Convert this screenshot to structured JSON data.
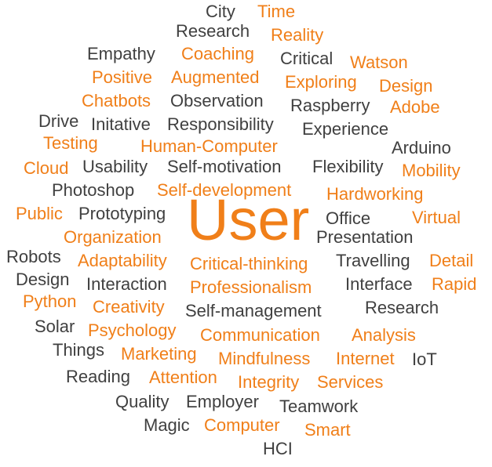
{
  "colors": {
    "orange": "#f07f19",
    "dark": "#404040"
  },
  "words": [
    {
      "text": "City",
      "color": "dark"
    },
    {
      "text": "Time",
      "color": "orange"
    },
    {
      "text": "Research",
      "color": "dark"
    },
    {
      "text": "Reality",
      "color": "orange"
    },
    {
      "text": "Empathy",
      "color": "dark"
    },
    {
      "text": "Coaching",
      "color": "orange"
    },
    {
      "text": "Critical",
      "color": "dark"
    },
    {
      "text": "Watson",
      "color": "orange"
    },
    {
      "text": "Positive",
      "color": "orange"
    },
    {
      "text": "Augmented",
      "color": "orange"
    },
    {
      "text": "Exploring",
      "color": "orange"
    },
    {
      "text": "Design",
      "color": "orange"
    },
    {
      "text": "Chatbots",
      "color": "orange"
    },
    {
      "text": "Observation",
      "color": "dark"
    },
    {
      "text": "Raspberry",
      "color": "dark"
    },
    {
      "text": "Adobe",
      "color": "orange"
    },
    {
      "text": "Drive",
      "color": "dark"
    },
    {
      "text": "Initative",
      "color": "dark"
    },
    {
      "text": "Responsibility",
      "color": "dark"
    },
    {
      "text": "Experience",
      "color": "dark"
    },
    {
      "text": "Testing",
      "color": "orange"
    },
    {
      "text": "Human-Computer",
      "color": "orange"
    },
    {
      "text": "Arduino",
      "color": "dark"
    },
    {
      "text": "Cloud",
      "color": "orange"
    },
    {
      "text": "Usability",
      "color": "dark"
    },
    {
      "text": "Self-motivation",
      "color": "dark"
    },
    {
      "text": "Flexibility",
      "color": "dark"
    },
    {
      "text": "Mobility",
      "color": "orange"
    },
    {
      "text": "Photoshop",
      "color": "dark"
    },
    {
      "text": "Self-development",
      "color": "orange"
    },
    {
      "text": "Hardworking",
      "color": "orange"
    },
    {
      "text": "Public",
      "color": "orange"
    },
    {
      "text": "Prototyping",
      "color": "dark"
    },
    {
      "text": "User",
      "color": "orange"
    },
    {
      "text": "Office",
      "color": "dark"
    },
    {
      "text": "Virtual",
      "color": "orange"
    },
    {
      "text": "Organization",
      "color": "orange"
    },
    {
      "text": "Presentation",
      "color": "dark"
    },
    {
      "text": "Robots",
      "color": "dark"
    },
    {
      "text": "Adaptability",
      "color": "orange"
    },
    {
      "text": "Critical-thinking",
      "color": "orange"
    },
    {
      "text": "Travelling",
      "color": "dark"
    },
    {
      "text": "Detail",
      "color": "orange"
    },
    {
      "text": "Design",
      "color": "dark"
    },
    {
      "text": "Interaction",
      "color": "dark"
    },
    {
      "text": "Professionalism",
      "color": "orange"
    },
    {
      "text": "Interface",
      "color": "dark"
    },
    {
      "text": "Rapid",
      "color": "orange"
    },
    {
      "text": "Python",
      "color": "orange"
    },
    {
      "text": "Creativity",
      "color": "orange"
    },
    {
      "text": "Self-management",
      "color": "dark"
    },
    {
      "text": "Research",
      "color": "dark"
    },
    {
      "text": "Solar",
      "color": "dark"
    },
    {
      "text": "Psychology",
      "color": "orange"
    },
    {
      "text": "Communication",
      "color": "orange"
    },
    {
      "text": "Analysis",
      "color": "orange"
    },
    {
      "text": "Things",
      "color": "dark"
    },
    {
      "text": "Marketing",
      "color": "orange"
    },
    {
      "text": "Mindfulness",
      "color": "orange"
    },
    {
      "text": "Internet",
      "color": "orange"
    },
    {
      "text": "IoT",
      "color": "dark"
    },
    {
      "text": "Reading",
      "color": "dark"
    },
    {
      "text": "Attention",
      "color": "orange"
    },
    {
      "text": "Integrity",
      "color": "orange"
    },
    {
      "text": "Services",
      "color": "orange"
    },
    {
      "text": "Quality",
      "color": "dark"
    },
    {
      "text": "Employer",
      "color": "dark"
    },
    {
      "text": "Teamwork",
      "color": "dark"
    },
    {
      "text": "Magic",
      "color": "dark"
    },
    {
      "text": "Computer",
      "color": "orange"
    },
    {
      "text": "Smart",
      "color": "orange"
    },
    {
      "text": "HCI",
      "color": "dark"
    }
  ]
}
